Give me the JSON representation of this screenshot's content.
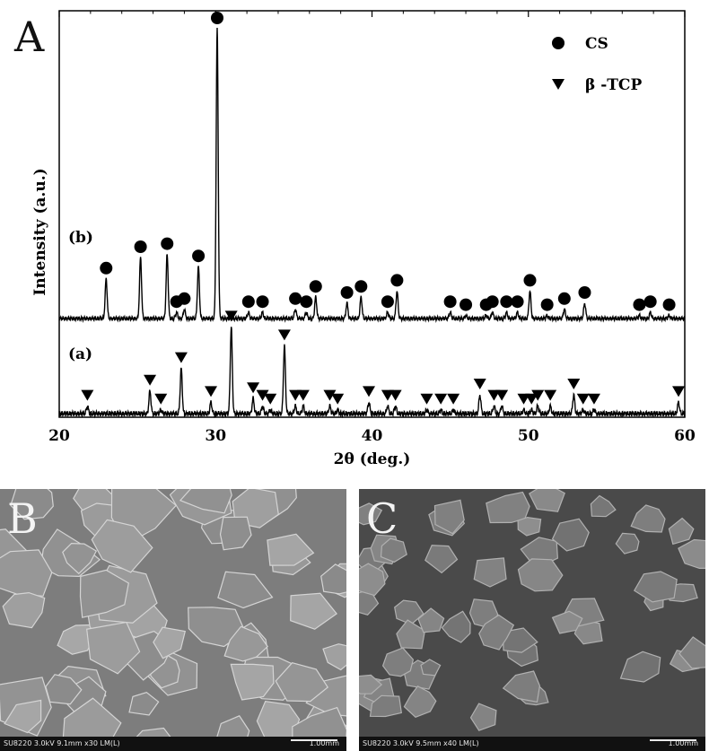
{
  "panel_labels": {
    "a": "A",
    "b": "B",
    "c": "C"
  },
  "chart_data": {
    "type": "line",
    "xlabel": "2θ  (deg.)",
    "ylabel": "Intensity (a.u.)",
    "xlim": [
      20,
      60
    ],
    "x_ticks": [
      20,
      30,
      40,
      50,
      60
    ],
    "y_ticks_shown": false,
    "legend": {
      "placement": "top-right",
      "entries": [
        {
          "marker": "circle",
          "label": "CS"
        },
        {
          "marker": "triangle-down",
          "label": "β -TCP"
        }
      ]
    },
    "series": [
      {
        "name": "(b)",
        "baseline": 0.0,
        "peaks": [
          {
            "x": 23.0,
            "h": 0.13,
            "phase": "CS"
          },
          {
            "x": 25.2,
            "h": 0.2,
            "phase": "CS"
          },
          {
            "x": 26.9,
            "h": 0.21,
            "phase": "CS"
          },
          {
            "x": 27.5,
            "h": 0.02,
            "phase": "CS"
          },
          {
            "x": 28.0,
            "h": 0.03,
            "phase": "CS"
          },
          {
            "x": 28.9,
            "h": 0.17,
            "phase": "CS"
          },
          {
            "x": 30.1,
            "h": 0.95,
            "phase": "CS"
          },
          {
            "x": 32.1,
            "h": 0.02,
            "phase": "CS"
          },
          {
            "x": 33.0,
            "h": 0.02,
            "phase": "CS"
          },
          {
            "x": 35.1,
            "h": 0.03,
            "phase": "CS"
          },
          {
            "x": 35.8,
            "h": 0.02,
            "phase": "CS"
          },
          {
            "x": 36.4,
            "h": 0.07,
            "phase": "CS"
          },
          {
            "x": 38.4,
            "h": 0.05,
            "phase": "CS"
          },
          {
            "x": 39.3,
            "h": 0.07,
            "phase": "CS"
          },
          {
            "x": 41.0,
            "h": 0.02,
            "phase": "CS"
          },
          {
            "x": 41.6,
            "h": 0.09,
            "phase": "CS"
          },
          {
            "x": 45.0,
            "h": 0.02,
            "phase": "CS"
          },
          {
            "x": 46.0,
            "h": 0.01,
            "phase": "CS"
          },
          {
            "x": 47.3,
            "h": 0.01,
            "phase": "CS"
          },
          {
            "x": 47.7,
            "h": 0.02,
            "phase": "CS"
          },
          {
            "x": 48.6,
            "h": 0.02,
            "phase": "CS"
          },
          {
            "x": 49.3,
            "h": 0.02,
            "phase": "CS"
          },
          {
            "x": 50.1,
            "h": 0.09,
            "phase": "CS"
          },
          {
            "x": 51.2,
            "h": 0.01,
            "phase": "CS"
          },
          {
            "x": 52.3,
            "h": 0.03,
            "phase": "CS"
          },
          {
            "x": 53.6,
            "h": 0.05,
            "phase": "CS"
          },
          {
            "x": 57.1,
            "h": 0.01,
            "phase": "CS"
          },
          {
            "x": 57.8,
            "h": 0.02,
            "phase": "CS"
          },
          {
            "x": 59.0,
            "h": 0.01,
            "phase": "CS"
          }
        ]
      },
      {
        "name": "(a)",
        "baseline": 0.0,
        "peaks": [
          {
            "x": 21.8,
            "h": 0.02,
            "phase": "β -TCP"
          },
          {
            "x": 25.8,
            "h": 0.06,
            "phase": "β -TCP"
          },
          {
            "x": 26.5,
            "h": 0.01,
            "phase": "β -TCP"
          },
          {
            "x": 27.8,
            "h": 0.12,
            "phase": "β -TCP"
          },
          {
            "x": 29.7,
            "h": 0.03,
            "phase": "β -TCP"
          },
          {
            "x": 31.0,
            "h": 0.23,
            "phase": "β -TCP"
          },
          {
            "x": 32.4,
            "h": 0.04,
            "phase": "β -TCP"
          },
          {
            "x": 33.0,
            "h": 0.02,
            "phase": "β -TCP"
          },
          {
            "x": 33.5,
            "h": 0.01,
            "phase": "β -TCP"
          },
          {
            "x": 34.4,
            "h": 0.18,
            "phase": "β -TCP"
          },
          {
            "x": 35.1,
            "h": 0.02,
            "phase": "β -TCP"
          },
          {
            "x": 35.6,
            "h": 0.02,
            "phase": "β -TCP"
          },
          {
            "x": 37.3,
            "h": 0.02,
            "phase": "β -TCP"
          },
          {
            "x": 37.8,
            "h": 0.01,
            "phase": "β -TCP"
          },
          {
            "x": 39.8,
            "h": 0.03,
            "phase": "β -TCP"
          },
          {
            "x": 41.0,
            "h": 0.02,
            "phase": "β -TCP"
          },
          {
            "x": 41.5,
            "h": 0.02,
            "phase": "β -TCP"
          },
          {
            "x": 43.5,
            "h": 0.01,
            "phase": "β -TCP"
          },
          {
            "x": 44.4,
            "h": 0.01,
            "phase": "β -TCP"
          },
          {
            "x": 45.2,
            "h": 0.01,
            "phase": "β -TCP"
          },
          {
            "x": 46.9,
            "h": 0.05,
            "phase": "β -TCP"
          },
          {
            "x": 47.8,
            "h": 0.02,
            "phase": "β -TCP"
          },
          {
            "x": 48.3,
            "h": 0.02,
            "phase": "β -TCP"
          },
          {
            "x": 49.7,
            "h": 0.01,
            "phase": "β -TCP"
          },
          {
            "x": 50.2,
            "h": 0.01,
            "phase": "β -TCP"
          },
          {
            "x": 50.6,
            "h": 0.02,
            "phase": "β -TCP"
          },
          {
            "x": 51.4,
            "h": 0.02,
            "phase": "β -TCP"
          },
          {
            "x": 52.9,
            "h": 0.05,
            "phase": "β -TCP"
          },
          {
            "x": 53.5,
            "h": 0.01,
            "phase": "β -TCP"
          },
          {
            "x": 54.2,
            "h": 0.01,
            "phase": "β -TCP"
          },
          {
            "x": 59.6,
            "h": 0.03,
            "phase": "β -TCP"
          }
        ]
      }
    ]
  },
  "sem_images": [
    {
      "id": "B",
      "params": "SU8220 3.0kV 9.1mm x30 LM(L)",
      "scale_label": "1.00mm",
      "tone": "#8e8e8e"
    },
    {
      "id": "C",
      "params": "SU8220 3.0kV 9.5mm x40 LM(L)",
      "scale_label": "1.00mm",
      "tone": "#555555"
    }
  ]
}
